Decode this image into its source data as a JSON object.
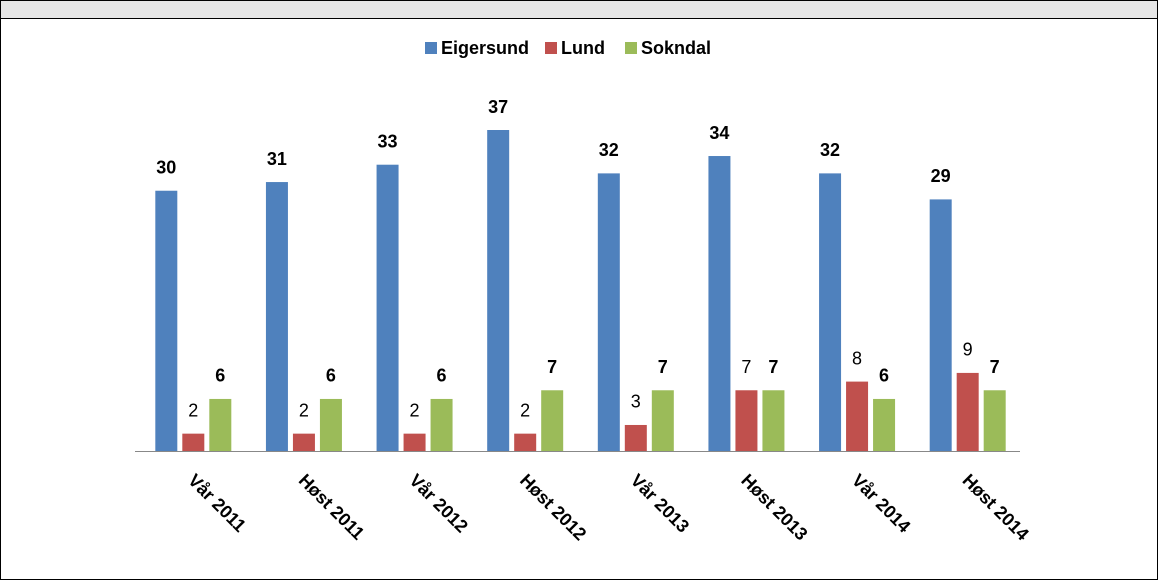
{
  "chart_data": {
    "type": "bar",
    "categories": [
      "Vår 2011",
      "Høst 2011",
      "Vår 2012",
      "Høst 2012",
      "Vår 2013",
      "Høst 2013",
      "Vår 2014",
      "Høst 2014"
    ],
    "series": [
      {
        "name": "Eigersund",
        "color": "#4f81bd",
        "label_bold": true,
        "values": [
          30,
          31,
          33,
          37,
          32,
          34,
          32,
          29
        ]
      },
      {
        "name": "Lund",
        "color": "#c0504d",
        "label_bold": false,
        "values": [
          2,
          2,
          2,
          2,
          3,
          7,
          8,
          9
        ]
      },
      {
        "name": "Sokndal",
        "color": "#9bbb59",
        "label_bold": true,
        "values": [
          6,
          6,
          6,
          7,
          7,
          7,
          6,
          7
        ]
      }
    ],
    "legend": "top"
  }
}
